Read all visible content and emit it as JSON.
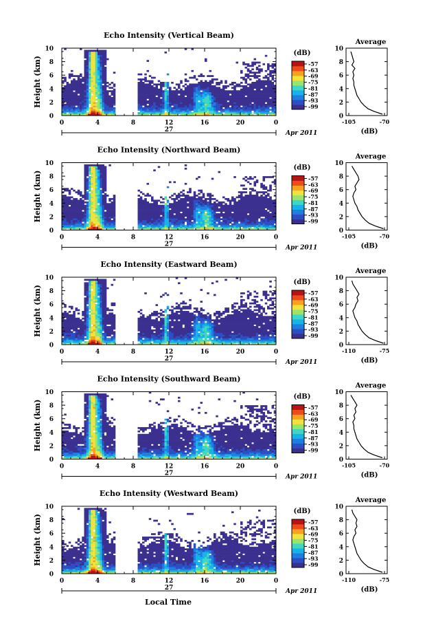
{
  "figure": {
    "xlabel": "Local Time",
    "date_label": "Apr 2011",
    "day_label": "27"
  },
  "colorbar": {
    "unit": "(dB)",
    "ticks": [
      "-57",
      "-63",
      "-69",
      "-75",
      "-81",
      "-87",
      "-93",
      "-99"
    ],
    "colors": [
      "#3b2f8f",
      "#2d4fc4",
      "#1f7fe0",
      "#17b3e8",
      "#3fd6c4",
      "#9be36a",
      "#f2e23c",
      "#f7a21f",
      "#ef4a1c",
      "#b51414"
    ]
  },
  "chart_data": [
    {
      "type": "heatmap",
      "title": "Echo Intensity (Vertical Beam)",
      "ylabel": "Height (km)",
      "x_ticks": [
        "0",
        "4",
        "8",
        "12",
        "16",
        "20",
        "0"
      ],
      "xlim": [
        0,
        24
      ],
      "y_ticks": [
        "0",
        "2",
        "4",
        "6",
        "8",
        "10"
      ],
      "ylim": [
        0,
        10
      ],
      "data_gap_hours": [
        6,
        8.5
      ],
      "profile": {
        "title": "Average",
        "xlabel": "(dB)",
        "x_ticks": [
          "-105",
          "-70"
        ],
        "xlim": [
          -105,
          -70
        ],
        "y_ticks": [
          "0",
          "2",
          "4",
          "6",
          "8",
          "10"
        ],
        "ylim": [
          0,
          10
        ],
        "height_km": [
          0.2,
          0.6,
          1,
          1.5,
          2,
          2.5,
          3,
          3.5,
          4,
          4.5,
          5,
          5.5,
          6,
          6.5,
          7,
          7.5,
          8,
          8.5,
          9,
          9.5
        ],
        "intensity_db": [
          -72,
          -80,
          -86,
          -90,
          -93,
          -95,
          -97,
          -98,
          -99,
          -100,
          -100,
          -101,
          -100,
          -101,
          -99,
          -102,
          -100,
          -101,
          -102,
          -103
        ]
      }
    },
    {
      "type": "heatmap",
      "title": "Echo Intensity (Northward Beam)",
      "ylabel": "Height (km)",
      "x_ticks": [
        "0",
        "4",
        "8",
        "12",
        "16",
        "20",
        "0"
      ],
      "xlim": [
        0,
        24
      ],
      "y_ticks": [
        "0",
        "2",
        "4",
        "6",
        "8",
        "10"
      ],
      "ylim": [
        0,
        10
      ],
      "data_gap_hours": [
        6,
        8.5
      ],
      "profile": {
        "title": "Average",
        "xlabel": "(dB)",
        "x_ticks": [
          "-105",
          "-70"
        ],
        "xlim": [
          -105,
          -70
        ],
        "y_ticks": [
          "0",
          "2",
          "4",
          "6",
          "8",
          "10"
        ],
        "ylim": [
          0,
          10
        ],
        "height_km": [
          0.2,
          0.6,
          1,
          1.5,
          2,
          2.5,
          3,
          3.5,
          4,
          4.5,
          5,
          5.5,
          6,
          6.5,
          7,
          7.5,
          8,
          8.5,
          9,
          9.5
        ],
        "intensity_db": [
          -71,
          -79,
          -85,
          -89,
          -92,
          -94,
          -96,
          -97,
          -99,
          -100,
          -101,
          -100,
          -98,
          -99,
          -97,
          -95,
          -96,
          -98,
          -100,
          -102
        ]
      }
    },
    {
      "type": "heatmap",
      "title": "Echo Intensity (Eastward Beam)",
      "ylabel": "Height (km)",
      "x_ticks": [
        "0",
        "4",
        "8",
        "12",
        "16",
        "20",
        "0"
      ],
      "xlim": [
        0,
        24
      ],
      "y_ticks": [
        "0",
        "2",
        "4",
        "6",
        "8",
        "10"
      ],
      "ylim": [
        0,
        10
      ],
      "data_gap_hours": [
        6,
        8.5
      ],
      "profile": {
        "title": "Average",
        "xlabel": "(dB)",
        "x_ticks": [
          "-110",
          "-75"
        ],
        "xlim": [
          -110,
          -75
        ],
        "y_ticks": [
          "0",
          "2",
          "4",
          "6",
          "8",
          "10"
        ],
        "ylim": [
          0,
          10
        ],
        "height_km": [
          0.2,
          0.6,
          1,
          1.5,
          2,
          2.5,
          3,
          3.5,
          4,
          4.5,
          5,
          5.5,
          6,
          6.5,
          7,
          7.5,
          8,
          8.5,
          9,
          9.5
        ],
        "intensity_db": [
          -76,
          -84,
          -90,
          -94,
          -97,
          -99,
          -101,
          -102,
          -104,
          -105,
          -106,
          -104,
          -103,
          -101,
          -102,
          -100,
          -102,
          -104,
          -106,
          -107
        ]
      }
    },
    {
      "type": "heatmap",
      "title": "Echo Intensity (Southward Beam)",
      "ylabel": "Height (km)",
      "x_ticks": [
        "0",
        "4",
        "8",
        "12",
        "16",
        "20",
        "0"
      ],
      "xlim": [
        0,
        24
      ],
      "y_ticks": [
        "0",
        "2",
        "4",
        "6",
        "8",
        "10"
      ],
      "ylim": [
        0,
        10
      ],
      "data_gap_hours": [
        6,
        8.5
      ],
      "profile": {
        "title": "Average",
        "xlabel": "(dB)",
        "x_ticks": [
          "-105",
          "-70"
        ],
        "xlim": [
          -105,
          -70
        ],
        "y_ticks": [
          "0",
          "2",
          "4",
          "6",
          "8",
          "10"
        ],
        "ylim": [
          0,
          10
        ],
        "height_km": [
          0.2,
          0.6,
          1,
          1.5,
          2,
          2.5,
          3,
          3.5,
          4,
          4.5,
          5,
          5.5,
          6,
          6.5,
          7,
          7.5,
          8,
          8.5,
          9,
          9.5
        ],
        "intensity_db": [
          -72,
          -80,
          -86,
          -90,
          -93,
          -95,
          -97,
          -98,
          -99,
          -100,
          -100,
          -101,
          -99,
          -100,
          -98,
          -99,
          -97,
          -99,
          -101,
          -103
        ]
      }
    },
    {
      "type": "heatmap",
      "title": "Echo Intensity (Westward Beam)",
      "ylabel": "Height (km)",
      "x_ticks": [
        "0",
        "4",
        "8",
        "12",
        "16",
        "20",
        "0"
      ],
      "xlim": [
        0,
        24
      ],
      "y_ticks": [
        "0",
        "2",
        "4",
        "6",
        "8",
        "10"
      ],
      "ylim": [
        0,
        10
      ],
      "data_gap_hours": [
        6,
        8.5
      ],
      "profile": {
        "title": "Average",
        "xlabel": "(dB)",
        "x_ticks": [
          "-110",
          "-75"
        ],
        "xlim": [
          -110,
          -75
        ],
        "y_ticks": [
          "0",
          "2",
          "4",
          "6",
          "8",
          "10"
        ],
        "ylim": [
          0,
          10
        ],
        "height_km": [
          0.2,
          0.6,
          1,
          1.5,
          2,
          2.5,
          3,
          3.5,
          4,
          4.5,
          5,
          5.5,
          6,
          6.5,
          7,
          7.5,
          8,
          8.5,
          9,
          9.5
        ],
        "intensity_db": [
          -77,
          -85,
          -91,
          -95,
          -98,
          -100,
          -102,
          -103,
          -104,
          -105,
          -106,
          -105,
          -103,
          -104,
          -102,
          -103,
          -102,
          -104,
          -106,
          -107
        ]
      }
    }
  ]
}
